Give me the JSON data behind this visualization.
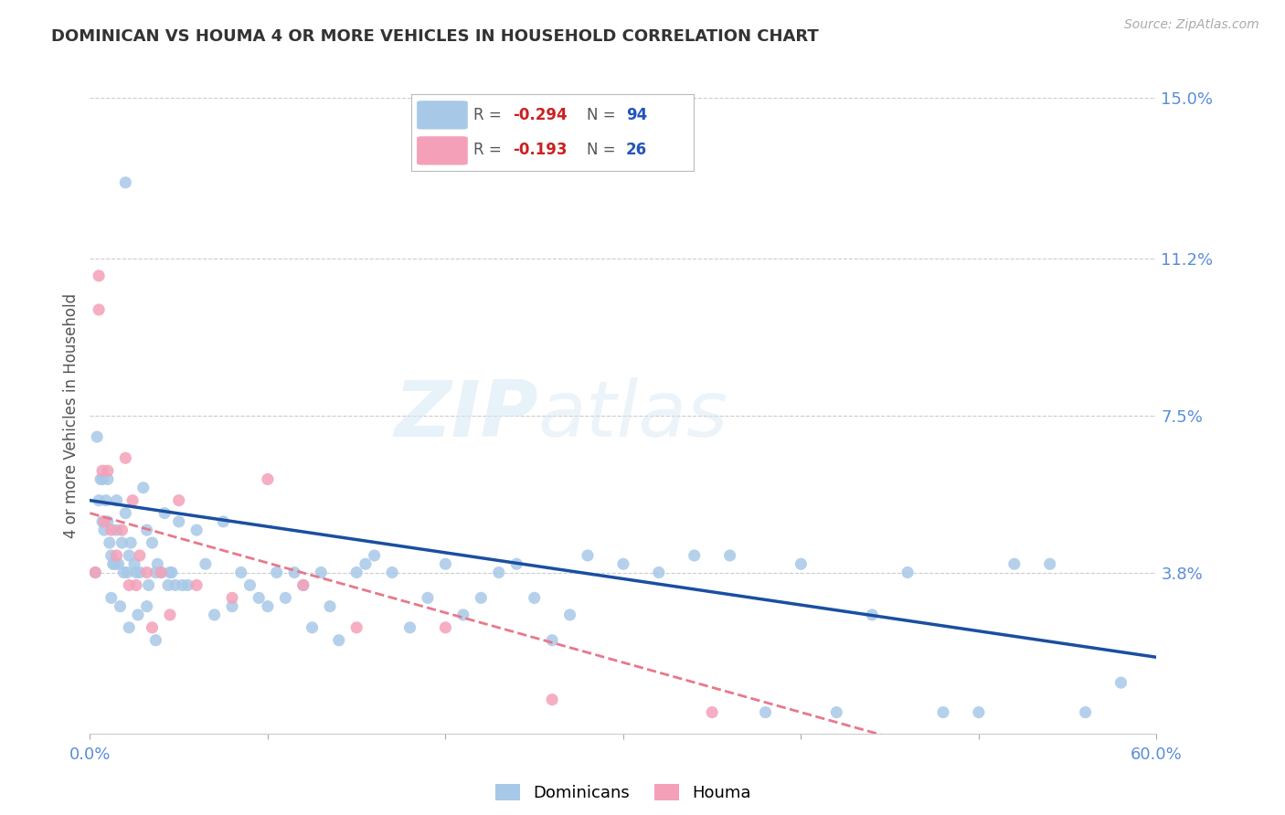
{
  "title": "DOMINICAN VS HOUMA 4 OR MORE VEHICLES IN HOUSEHOLD CORRELATION CHART",
  "source": "Source: ZipAtlas.com",
  "ylabel": "4 or more Vehicles in Household",
  "xlim": [
    0.0,
    0.6
  ],
  "ylim": [
    0.0,
    0.15
  ],
  "right_ytick_vals": [
    0.038,
    0.075,
    0.112,
    0.15
  ],
  "right_ytick_labels": [
    "3.8%",
    "7.5%",
    "11.2%",
    "15.0%"
  ],
  "xtick_positions": [
    0.0,
    0.1,
    0.2,
    0.3,
    0.4,
    0.5,
    0.6
  ],
  "xtick_labels": [
    "0.0%",
    "",
    "",
    "",
    "",
    "",
    "60.0%"
  ],
  "grid_color": "#cccccc",
  "background_color": "#ffffff",
  "dominicans_color": "#a8c8e8",
  "houma_color": "#f4a0b8",
  "trend_dominicans_color": "#1a4fa0",
  "trend_houma_color": "#e8788a",
  "watermark_zip": "ZIP",
  "watermark_atlas": "atlas",
  "legend_r_dom": "-0.294",
  "legend_n_dom": "94",
  "legend_r_houma": "-0.193",
  "legend_n_houma": "26",
  "dom_x": [
    0.003,
    0.005,
    0.006,
    0.007,
    0.008,
    0.009,
    0.01,
    0.01,
    0.011,
    0.012,
    0.013,
    0.014,
    0.015,
    0.015,
    0.016,
    0.018,
    0.019,
    0.02,
    0.021,
    0.022,
    0.023,
    0.025,
    0.026,
    0.028,
    0.03,
    0.032,
    0.033,
    0.035,
    0.037,
    0.038,
    0.04,
    0.042,
    0.044,
    0.046,
    0.048,
    0.05,
    0.055,
    0.06,
    0.065,
    0.07,
    0.075,
    0.08,
    0.085,
    0.09,
    0.095,
    0.1,
    0.105,
    0.11,
    0.115,
    0.12,
    0.125,
    0.13,
    0.135,
    0.14,
    0.15,
    0.155,
    0.16,
    0.17,
    0.18,
    0.19,
    0.2,
    0.21,
    0.22,
    0.23,
    0.24,
    0.25,
    0.26,
    0.27,
    0.28,
    0.3,
    0.32,
    0.34,
    0.36,
    0.38,
    0.4,
    0.42,
    0.44,
    0.46,
    0.48,
    0.5,
    0.52,
    0.54,
    0.56,
    0.58,
    0.004,
    0.007,
    0.012,
    0.017,
    0.022,
    0.027,
    0.032,
    0.037,
    0.045,
    0.052
  ],
  "dom_y": [
    0.038,
    0.055,
    0.06,
    0.05,
    0.048,
    0.055,
    0.06,
    0.05,
    0.045,
    0.042,
    0.04,
    0.04,
    0.055,
    0.048,
    0.04,
    0.045,
    0.038,
    0.052,
    0.038,
    0.042,
    0.045,
    0.04,
    0.038,
    0.038,
    0.058,
    0.048,
    0.035,
    0.045,
    0.038,
    0.04,
    0.038,
    0.052,
    0.035,
    0.038,
    0.035,
    0.05,
    0.035,
    0.048,
    0.04,
    0.028,
    0.05,
    0.03,
    0.038,
    0.035,
    0.032,
    0.03,
    0.038,
    0.032,
    0.038,
    0.035,
    0.025,
    0.038,
    0.03,
    0.022,
    0.038,
    0.04,
    0.042,
    0.038,
    0.025,
    0.032,
    0.04,
    0.028,
    0.032,
    0.038,
    0.04,
    0.032,
    0.022,
    0.028,
    0.042,
    0.04,
    0.038,
    0.042,
    0.042,
    0.005,
    0.04,
    0.005,
    0.028,
    0.038,
    0.005,
    0.005,
    0.04,
    0.04,
    0.005,
    0.012,
    0.07,
    0.06,
    0.032,
    0.03,
    0.025,
    0.028,
    0.03,
    0.022,
    0.038,
    0.035
  ],
  "dom_special_x": [
    0.02
  ],
  "dom_special_y": [
    0.13
  ],
  "houma_x": [
    0.003,
    0.005,
    0.007,
    0.008,
    0.01,
    0.012,
    0.015,
    0.018,
    0.02,
    0.022,
    0.024,
    0.026,
    0.028,
    0.032,
    0.035,
    0.04,
    0.045,
    0.05,
    0.06,
    0.08,
    0.1,
    0.12,
    0.15,
    0.2,
    0.26,
    0.35
  ],
  "houma_y": [
    0.038,
    0.1,
    0.062,
    0.05,
    0.062,
    0.048,
    0.042,
    0.048,
    0.065,
    0.035,
    0.055,
    0.035,
    0.042,
    0.038,
    0.025,
    0.038,
    0.028,
    0.055,
    0.035,
    0.032,
    0.06,
    0.035,
    0.025,
    0.025,
    0.008,
    0.005
  ],
  "houma_special_x": [
    0.005
  ],
  "houma_special_y": [
    0.108
  ]
}
